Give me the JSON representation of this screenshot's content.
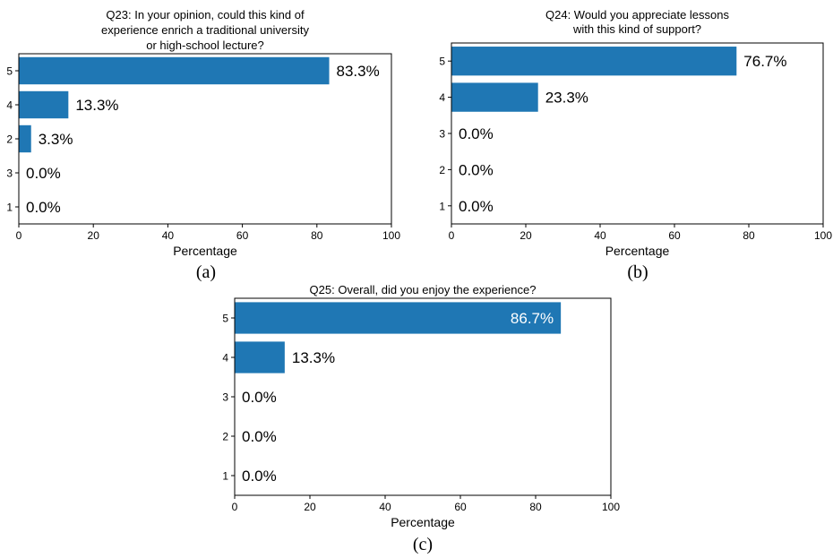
{
  "bar_color": "#1f77b4",
  "axis_color": "#000000",
  "panels": [
    {
      "title_lines": [
        "Q23: In your opinion, could this kind of",
        "experience enrich a traditional university",
        "or high-school lecture?"
      ],
      "caption": "(a)",
      "xlabel": "Percentage",
      "xticks": [
        "0",
        "20",
        "40",
        "60",
        "80",
        "100"
      ]
    },
    {
      "title_lines": [
        "Q24: Would you appreciate lessons",
        "with this kind of support?"
      ],
      "caption": "(b)",
      "xlabel": "Percentage",
      "xticks": [
        "0",
        "20",
        "40",
        "60",
        "80",
        "100"
      ]
    },
    {
      "title_lines": [
        "Q25: Overall, did you enjoy the experience?"
      ],
      "caption": "(c)",
      "xlabel": "Percentage",
      "xticks": [
        "0",
        "20",
        "40",
        "60",
        "80",
        "100"
      ]
    }
  ],
  "chart_data": [
    {
      "type": "bar",
      "orientation": "horizontal",
      "title": "Q23: In your opinion, could this kind of experience enrich a traditional university or high-school lecture?",
      "categories": [
        "5",
        "4",
        "2",
        "3",
        "1"
      ],
      "values": [
        83.3,
        13.3,
        3.3,
        0.0,
        0.0
      ],
      "data_labels": [
        "83.3%",
        "13.3%",
        "3.3%",
        "0.0%",
        "0.0%"
      ],
      "xlabel": "Percentage",
      "ylabel": "",
      "xlim": [
        0,
        100
      ],
      "grid": false
    },
    {
      "type": "bar",
      "orientation": "horizontal",
      "title": "Q24: Would you appreciate lessons with this kind of support?",
      "categories": [
        "5",
        "4",
        "3",
        "2",
        "1"
      ],
      "values": [
        76.7,
        23.3,
        0.0,
        0.0,
        0.0
      ],
      "data_labels": [
        "76.7%",
        "23.3%",
        "0.0%",
        "0.0%",
        "0.0%"
      ],
      "xlabel": "Percentage",
      "ylabel": "",
      "xlim": [
        0,
        100
      ],
      "grid": false
    },
    {
      "type": "bar",
      "orientation": "horizontal",
      "title": "Q25: Overall, did you enjoy the experience?",
      "categories": [
        "5",
        "4",
        "3",
        "2",
        "1"
      ],
      "values": [
        86.7,
        13.3,
        0.0,
        0.0,
        0.0
      ],
      "data_labels": [
        "86.7%",
        "13.3%",
        "0.0%",
        "0.0%",
        "0.0%"
      ],
      "xlabel": "Percentage",
      "ylabel": "",
      "xlim": [
        0,
        100
      ],
      "grid": false
    }
  ]
}
